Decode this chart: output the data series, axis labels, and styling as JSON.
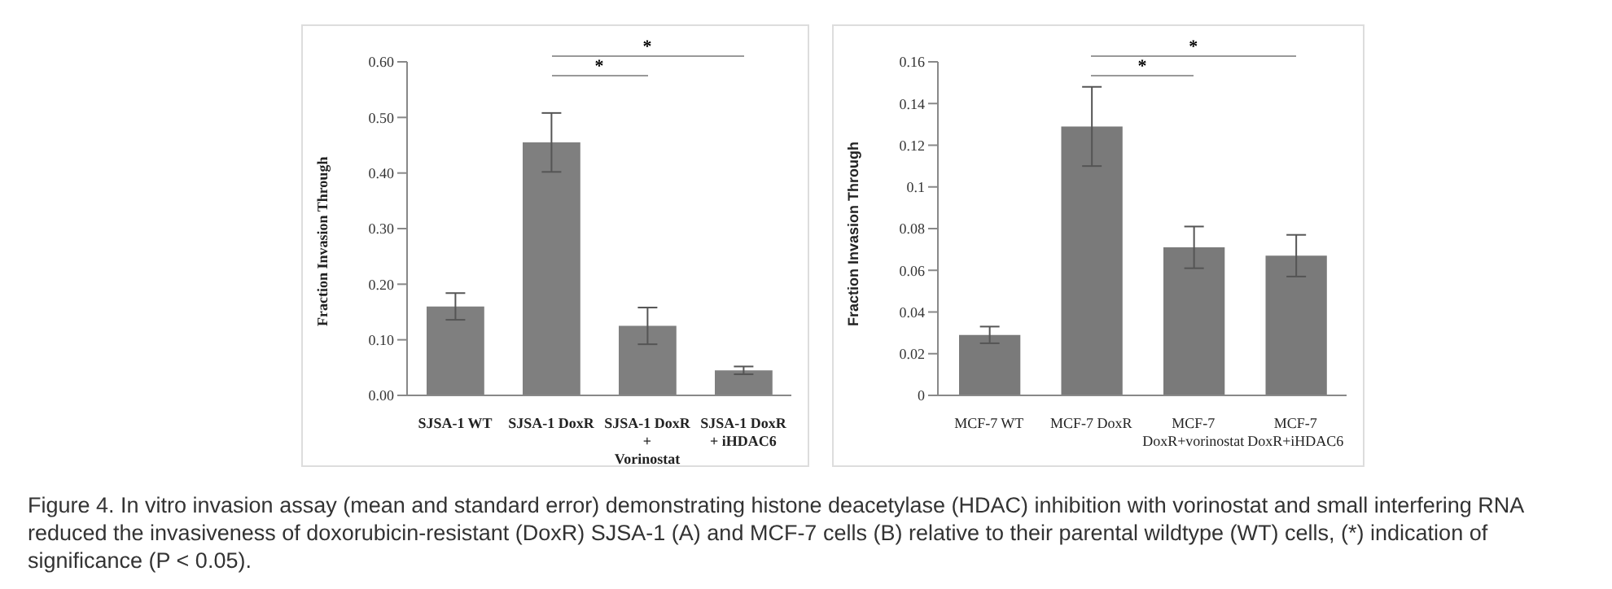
{
  "chart_data": [
    {
      "type": "bar",
      "ylabel": "Fraction Invasion Through",
      "categories": [
        "SJSA-1 WT",
        "SJSA-1 DoxR",
        "SJSA-1 DoxR + Vorinostat",
        "SJSA-1 DoxR + iHDAC6"
      ],
      "series": [
        {
          "color": "#7f7f7f",
          "values": [
            0.16,
            0.455,
            0.125,
            0.045
          ],
          "errors": [
            0.024,
            0.053,
            0.033,
            0.007
          ]
        }
      ],
      "ylim": [
        0,
        0.6
      ],
      "yticks": [
        {
          "value": 0,
          "label": "0.00"
        },
        {
          "value": 0.1,
          "label": "0.10"
        },
        {
          "value": 0.2,
          "label": "0.20"
        },
        {
          "value": 0.3,
          "label": "0.30"
        },
        {
          "value": 0.4,
          "label": "0.40"
        },
        {
          "value": 0.5,
          "label": "0.50"
        },
        {
          "value": 0.6,
          "label": "0.60"
        }
      ],
      "annotations": [
        "*",
        "*"
      ]
    },
    {
      "type": "bar",
      "ylabel": "Fraction Invasion Through",
      "categories": [
        "MCF-7 WT",
        "MCF-7 DoxR",
        "MCF-7 DoxR+vorinostat",
        "MCF-7 DoxR+iHDAC6"
      ],
      "series": [
        {
          "color": "#7a7a7a",
          "values": [
            0.029,
            0.129,
            0.071,
            0.067
          ],
          "errors": [
            0.004,
            0.019,
            0.01,
            0.01
          ]
        }
      ],
      "ylim": [
        0,
        0.16
      ],
      "yticks": [
        0,
        0.02,
        0.04,
        0.06,
        0.08,
        0.1,
        0.12,
        0.14,
        0.16
      ],
      "annotations": [
        "*",
        "*",
        "Figure 4. In vitro invasion assay (mean and standard error) demonstrating histone deacetylase (HDAC) inhibition with vorinostat and small interfering RNA reduced the invasiveness of doxorubicin-resistant (DoxR) SJSA-1 (A) and MCF-7 cells (B) relative to their parental wildtype (WT) cells, (*) indication of significance (P < 0.05)."
      ]
    }
  ]
}
